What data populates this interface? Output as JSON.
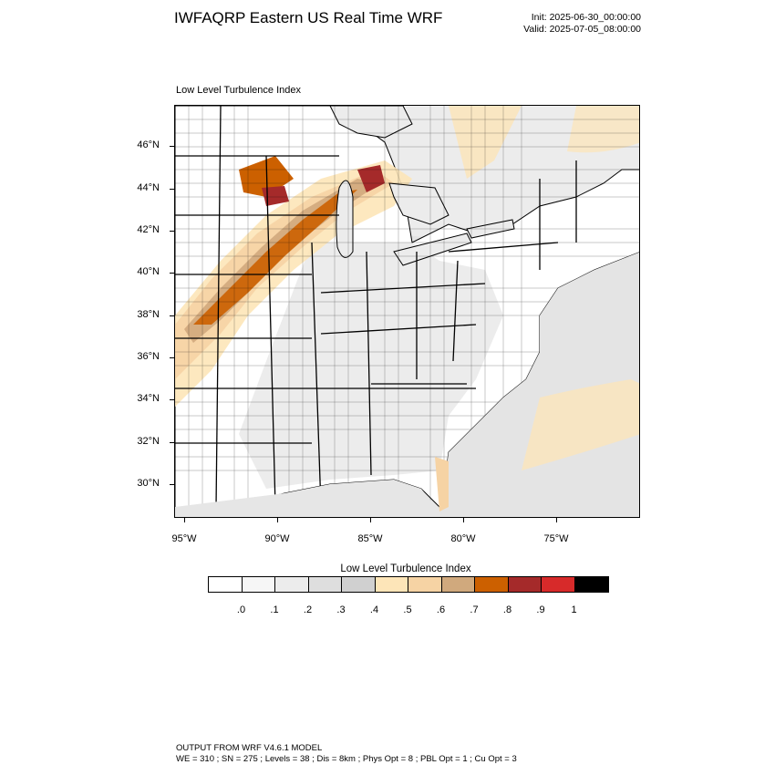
{
  "header": {
    "title": "IWFAQRP Eastern US Real Time WRF",
    "init": "Init: 2025-06-30_00:00:00",
    "valid": "Valid: 2025-07-05_08:00:00"
  },
  "map": {
    "label": "Low Level Turbulence Index",
    "lat_labels": [
      "46°N",
      "44°N",
      "42°N",
      "40°N",
      "38°N",
      "36°N",
      "34°N",
      "32°N",
      "30°N"
    ],
    "lon_labels": [
      "95°W",
      "90°W",
      "85°W",
      "80°W",
      "75°W"
    ],
    "colors": {
      "land": "#ffffff",
      "ocean": "#e6e6e6",
      "border": "#000000"
    }
  },
  "colorbar": {
    "title": "Low Level Turbulence Index",
    "colors": [
      "#ffffff",
      "#f6f6f6",
      "#ececec",
      "#dedede",
      "#d0d0d0",
      "#fde5b8",
      "#f6d3a4",
      "#d0a97d",
      "#cc6000",
      "#a52a2a",
      "#d72a2a",
      "#000000"
    ],
    "labels": [
      ".0",
      ".1",
      ".2",
      ".3",
      ".4",
      ".5",
      ".6",
      ".7",
      ".8",
      ".9",
      "1"
    ]
  },
  "footer": {
    "line1": "OUTPUT FROM WRF V4.6.1 MODEL",
    "line2": "WE = 310 ; SN = 275 ; Levels = 38 ; Dis = 8km ; Phys Opt = 8 ; PBL Opt = 1 ; Cu Opt = 3"
  }
}
